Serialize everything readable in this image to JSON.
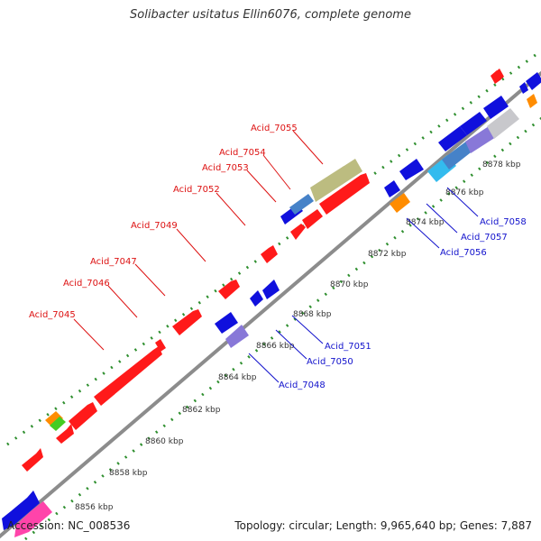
{
  "title": "Solibacter usitatus Ellin6076, complete genome",
  "footer": {
    "accession": "Accession: NC_008536",
    "summary": "Topology: circular; Length: 9,965,640 bp; Genes: 7,887"
  },
  "colors": {
    "backbone": "#8c8c8c",
    "tick_dots": "#2f8f2f",
    "forward_label": "#dd1111",
    "reverse_label": "#1111cc",
    "red": "#ff1a1a",
    "blue": "#1010dd",
    "purple": "#8878d8",
    "olive": "#bcbc80",
    "steel": "#4682c8",
    "cyan": "#33bbee",
    "silver": "#c8c8cc",
    "orange": "#ff8c00",
    "green": "#44cc22",
    "pink": "#ff44aa"
  },
  "scale_labels": [
    "8856 kbp",
    "8858 kbp",
    "8860 kbp",
    "8862 kbp",
    "8864 kbp",
    "8866 kbp",
    "8868 kbp",
    "8870 kbp",
    "8872 kbp",
    "8874 kbp",
    "8876 kbp",
    "8878 kbp"
  ],
  "forward_gene_labels": [
    "Acid_7045",
    "Acid_7046",
    "Acid_7047",
    "Acid_7049",
    "Acid_7052",
    "Acid_7053",
    "Acid_7054",
    "Acid_7055"
  ],
  "reverse_gene_labels": [
    "Acid_7048",
    "Acid_7050",
    "Acid_7051",
    "Acid_7056",
    "Acid_7057",
    "Acid_7058"
  ]
}
